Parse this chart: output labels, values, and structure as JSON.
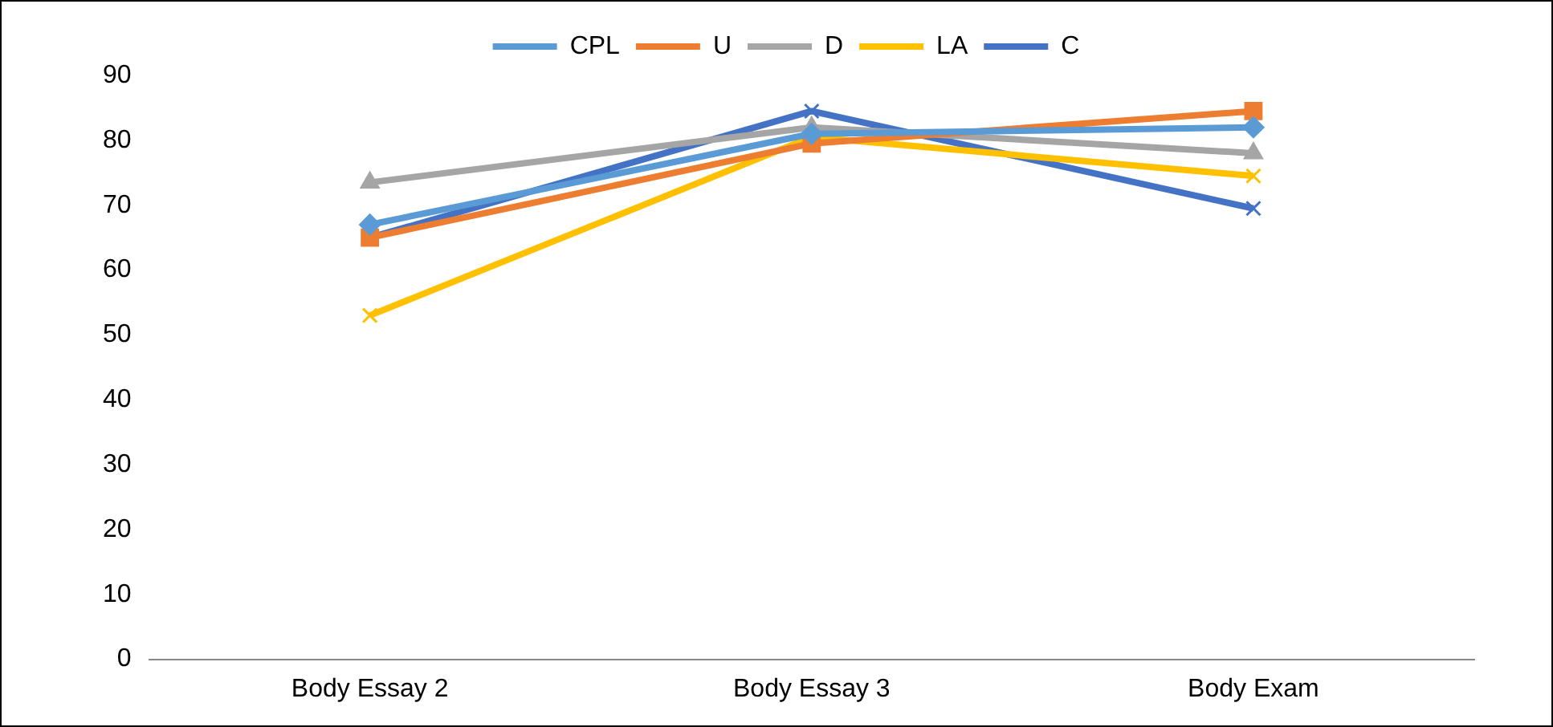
{
  "chart_data": {
    "type": "line",
    "categories": [
      "Body Essay 2",
      "Body Essay 3",
      "Body Exam"
    ],
    "series": [
      {
        "name": "CPL",
        "color": "#5b9bd5",
        "marker": "diamond",
        "values": [
          67,
          81,
          82
        ]
      },
      {
        "name": "U",
        "color": "#ed7d31",
        "marker": "square",
        "values": [
          65,
          79.5,
          84.5
        ]
      },
      {
        "name": "D",
        "color": "#a5a5a5",
        "marker": "triangle",
        "values": [
          73.5,
          82,
          78
        ]
      },
      {
        "name": "LA",
        "color": "#ffc000",
        "marker": "cross",
        "values": [
          53,
          80.5,
          74.5
        ]
      },
      {
        "name": "C",
        "color": "#4472c4",
        "marker": "cross",
        "values": [
          65,
          84.5,
          69.5
        ]
      }
    ],
    "ylim": [
      0,
      90
    ],
    "yticks": [
      0,
      10,
      20,
      30,
      40,
      50,
      60,
      70,
      80,
      90
    ],
    "grid": false,
    "legend": "top"
  }
}
